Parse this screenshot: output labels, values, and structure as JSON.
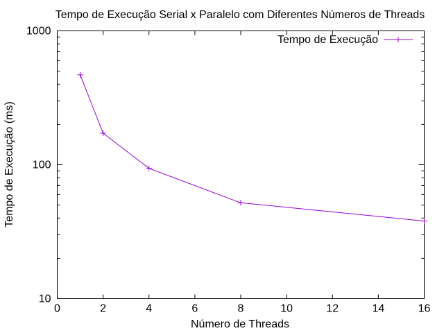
{
  "chart_data": {
    "type": "line",
    "title": "Tempo de Execução Serial x Paralelo com Diferentes Números de Threads",
    "xlabel": "Número de Threads",
    "ylabel": "Tempo de Execução (ms)",
    "x_scale": "linear",
    "y_scale": "log",
    "xlim": [
      0,
      16
    ],
    "ylim": [
      10,
      1000
    ],
    "x_ticks": [
      "0",
      "2",
      "4",
      "6",
      "8",
      "10",
      "12",
      "14",
      "16"
    ],
    "y_ticks": [
      "10",
      "100",
      "1000"
    ],
    "grid": false,
    "legend_position": "top-right",
    "series": [
      {
        "name": "Tempo de Execução",
        "color": "#9400d3",
        "marker": "plus",
        "x": [
          1,
          2,
          4,
          8,
          16
        ],
        "y": [
          470,
          172,
          94,
          52,
          38
        ]
      }
    ]
  }
}
